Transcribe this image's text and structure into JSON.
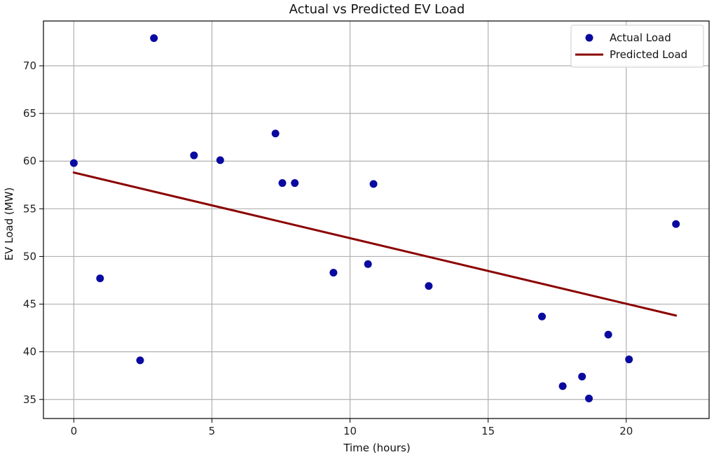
{
  "chart_data": {
    "type": "scatter",
    "title": "Actual vs Predicted EV Load",
    "xlabel": "Time (hours)",
    "ylabel": "EV Load (MW)",
    "xlim": [
      -1.1,
      23.0
    ],
    "ylim": [
      33.0,
      74.7
    ],
    "xticks": [
      0,
      5,
      10,
      15,
      20
    ],
    "yticks": [
      35,
      40,
      45,
      50,
      55,
      60,
      65,
      70
    ],
    "grid": true,
    "legend_position": "top-right",
    "series": [
      {
        "name": "Actual Load",
        "kind": "scatter",
        "color": "#0a0aa0",
        "points": [
          {
            "x": 0.0,
            "y": 59.8
          },
          {
            "x": 0.95,
            "y": 47.7
          },
          {
            "x": 2.4,
            "y": 39.1
          },
          {
            "x": 2.9,
            "y": 72.9
          },
          {
            "x": 4.35,
            "y": 60.6
          },
          {
            "x": 5.3,
            "y": 60.1
          },
          {
            "x": 7.3,
            "y": 62.9
          },
          {
            "x": 7.55,
            "y": 57.7
          },
          {
            "x": 8.0,
            "y": 57.7
          },
          {
            "x": 9.4,
            "y": 48.3
          },
          {
            "x": 10.65,
            "y": 49.2
          },
          {
            "x": 10.85,
            "y": 57.6
          },
          {
            "x": 12.85,
            "y": 46.9
          },
          {
            "x": 16.95,
            "y": 43.7
          },
          {
            "x": 17.7,
            "y": 36.4
          },
          {
            "x": 18.4,
            "y": 37.4
          },
          {
            "x": 18.65,
            "y": 35.1
          },
          {
            "x": 19.35,
            "y": 41.8
          },
          {
            "x": 20.1,
            "y": 39.2
          },
          {
            "x": 21.8,
            "y": 53.4
          }
        ]
      },
      {
        "name": "Predicted Load",
        "kind": "line",
        "color": "#8b0000",
        "points": [
          {
            "x": 0.0,
            "y": 58.8
          },
          {
            "x": 21.8,
            "y": 43.8
          }
        ]
      }
    ]
  }
}
